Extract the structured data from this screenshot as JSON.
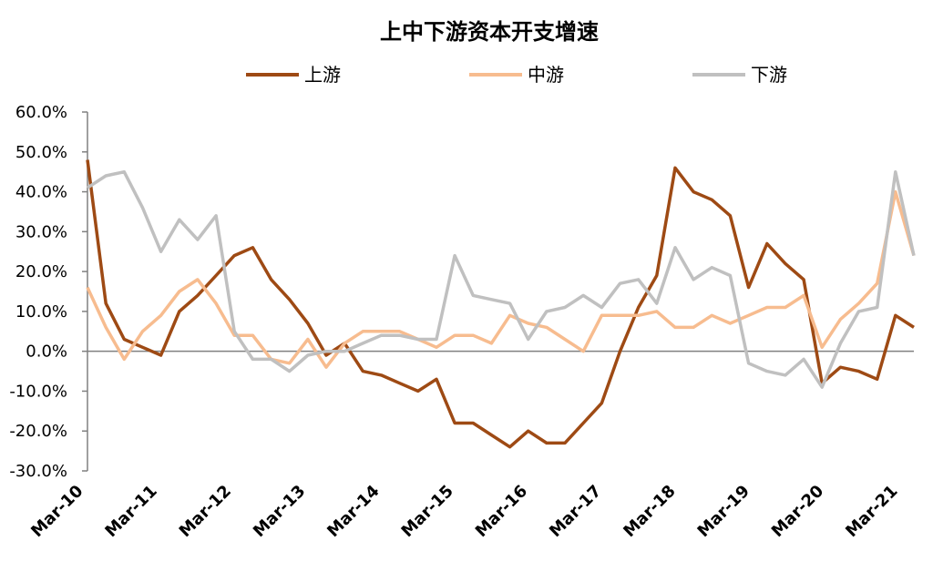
{
  "chart_data": {
    "type": "line",
    "title": "上中下游资本开支增速",
    "xlabel": "",
    "ylabel": "",
    "ylim": [
      -0.3,
      0.6
    ],
    "y_ticks": [
      "60.0%",
      "50.0%",
      "40.0%",
      "30.0%",
      "20.0%",
      "10.0%",
      "0.0%",
      "-10.0%",
      "-20.0%",
      "-30.0%"
    ],
    "x_ticks": [
      "Mar-10",
      "Mar-11",
      "Mar-12",
      "Mar-13",
      "Mar-14",
      "Mar-15",
      "Mar-16",
      "Mar-17",
      "Mar-18",
      "Mar-19",
      "Mar-20",
      "Mar-21"
    ],
    "legend_position": "top",
    "grid": false,
    "series": [
      {
        "name": "上游",
        "color": "#9E4A14",
        "values": [
          0.48,
          0.12,
          0.03,
          0.01,
          -0.01,
          0.1,
          0.14,
          0.19,
          0.24,
          0.26,
          0.18,
          0.13,
          0.07,
          -0.01,
          0.02,
          -0.05,
          -0.06,
          -0.08,
          -0.1,
          -0.07,
          -0.18,
          -0.18,
          -0.21,
          -0.24,
          -0.2,
          -0.23,
          -0.23,
          -0.18,
          -0.13,
          0.0,
          0.11,
          0.19,
          0.46,
          0.4,
          0.38,
          0.34,
          0.16,
          0.27,
          0.22,
          0.18,
          -0.08,
          -0.04,
          -0.05,
          -0.07,
          0.09,
          0.06
        ]
      },
      {
        "name": "中游",
        "color": "#F7BC8F",
        "values": [
          0.16,
          0.06,
          -0.02,
          0.05,
          0.09,
          0.15,
          0.18,
          0.12,
          0.04,
          0.04,
          -0.02,
          -0.03,
          0.03,
          -0.04,
          0.02,
          0.05,
          0.05,
          0.05,
          0.03,
          0.01,
          0.04,
          0.04,
          0.02,
          0.09,
          0.07,
          0.06,
          0.03,
          0.0,
          0.09,
          0.09,
          0.09,
          0.1,
          0.06,
          0.06,
          0.09,
          0.07,
          0.09,
          0.11,
          0.11,
          0.14,
          0.01,
          0.08,
          0.12,
          0.17,
          0.4,
          0.24
        ]
      },
      {
        "name": "下游",
        "color": "#C0C0C0",
        "values": [
          0.41,
          0.44,
          0.45,
          0.36,
          0.25,
          0.33,
          0.28,
          0.34,
          0.05,
          -0.02,
          -0.02,
          -0.05,
          -0.01,
          0.0,
          0.0,
          0.02,
          0.04,
          0.04,
          0.03,
          0.03,
          0.24,
          0.14,
          0.13,
          0.12,
          0.03,
          0.1,
          0.11,
          0.14,
          0.11,
          0.17,
          0.18,
          0.12,
          0.26,
          0.18,
          0.21,
          0.19,
          -0.03,
          -0.05,
          -0.06,
          -0.02,
          -0.09,
          0.02,
          0.1,
          0.11,
          0.45,
          0.24
        ]
      }
    ]
  }
}
